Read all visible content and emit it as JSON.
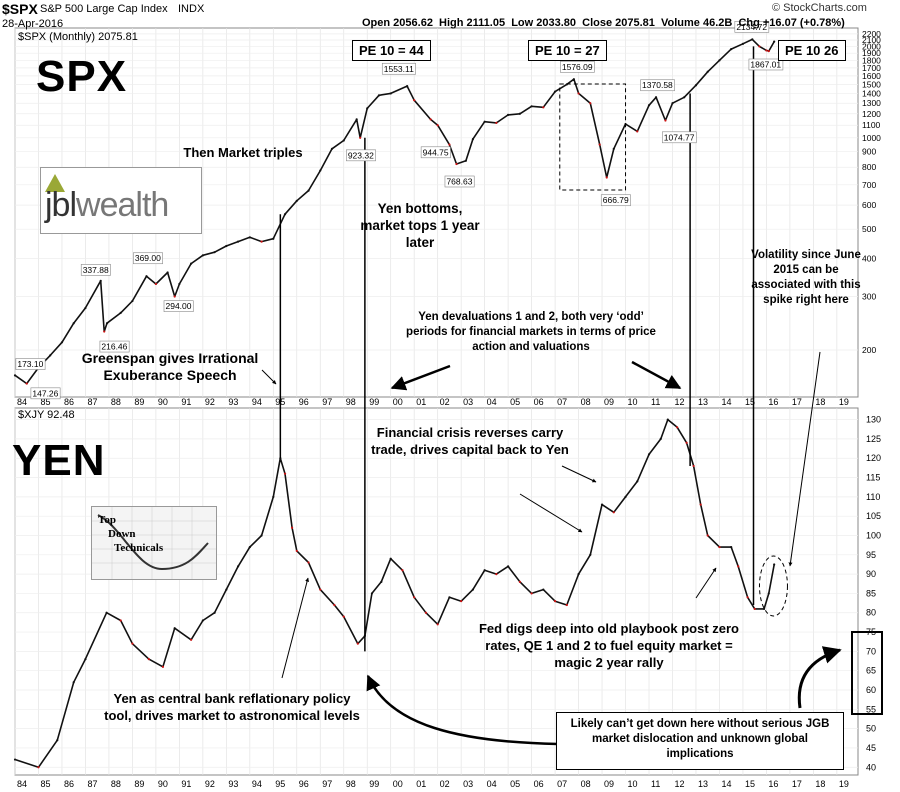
{
  "header": {
    "symbol": "$SPX",
    "description": "S&P 500 Large Cap Index",
    "exchange": "INDX",
    "date": "28-Apr-2016",
    "ohlc": "Open 2056.62  High 2111.05  Low 2033.80  Close 2075.81  Volume 46.2B  Chg +16.07 (+0.78%)",
    "credit": "© StockCharts.com"
  },
  "spx_panel": {
    "legend": "$SPX (Monthly) 2075.81",
    "big_label": "SPX",
    "pe_labels": [
      "PE 10 = 44",
      "PE 10 = 27",
      "PE 10 26"
    ],
    "callouts": [
      "173.10",
      "147.26",
      "337.88",
      "216.46",
      "369.00",
      "294.00",
      "923.32",
      "1553.11",
      "944.75",
      "768.63",
      "1576.09",
      "666.79",
      "1370.58",
      "1074.77",
      "2134.72",
      "1867.01"
    ],
    "y_ticks": [
      "2200",
      "2100",
      "2000",
      "1900",
      "1800",
      "1700",
      "1600",
      "1500",
      "1400",
      "1300",
      "1200",
      "1100",
      "1000",
      "900",
      "800",
      "700",
      "600",
      "500",
      "400",
      "300",
      "200"
    ]
  },
  "yen_panel": {
    "legend": "$XJY 92.48",
    "big_label": "YEN",
    "y_ticks": [
      "130",
      "125",
      "120",
      "115",
      "110",
      "105",
      "100",
      "95",
      "90",
      "85",
      "80",
      "75",
      "70",
      "65",
      "60",
      "55",
      "50",
      "45",
      "40"
    ]
  },
  "x_ticks": [
    "84",
    "85",
    "86",
    "87",
    "88",
    "89",
    "90",
    "91",
    "92",
    "93",
    "94",
    "95",
    "96",
    "97",
    "98",
    "99",
    "00",
    "01",
    "02",
    "03",
    "04",
    "05",
    "06",
    "07",
    "08",
    "09",
    "10",
    "11",
    "12",
    "13",
    "14",
    "15",
    "16",
    "17",
    "18",
    "19"
  ],
  "annotations": {
    "market_triples": "Then Market triples",
    "yen_bottoms": "Yen bottoms, market tops 1 year later",
    "volatility": "Volatility since June 2015 can be associated with this spike right here",
    "devaluations": "Yen devaluations 1 and 2, both very ‘odd’ periods for financial markets in terms of price action and valuations",
    "greenspan": "Greenspan gives Irrational Exuberance Speech",
    "financial_crisis": "Financial crisis reverses carry trade, drives capital back to Yen",
    "fed_digs": "Fed digs deep into old playbook post zero rates, QE 1 and 2 to fuel equity market = magic 2 year rally",
    "yen_tool": "Yen as central bank reflationary policy tool, drives market to astronomical levels",
    "likely": "Likely can’t get down here without serious JGB market dislocation and unknown global implications"
  },
  "logos": {
    "jbl_prefix": "jbl",
    "jbl_suffix": "wealth",
    "tdt_lines": [
      "Top",
      "Down",
      "Technicals"
    ]
  },
  "chart_data": [
    {
      "type": "line",
      "title": "$SPX (Monthly) 2075.81",
      "scale": "log",
      "ylim": [
        140,
        2300
      ],
      "xlim": [
        1984.0,
        2019.9
      ],
      "x": [
        1984.0,
        1984.5,
        1985.0,
        1985.5,
        1986.0,
        1986.5,
        1987.0,
        1987.65,
        1987.8,
        1987.92,
        1988.5,
        1989.0,
        1989.6,
        1990.0,
        1990.5,
        1990.8,
        1991.0,
        1991.5,
        1992.0,
        1992.5,
        1993.0,
        1993.5,
        1994.0,
        1994.5,
        1995.0,
        1995.5,
        1996.0,
        1996.5,
        1997.0,
        1997.5,
        1998.0,
        1998.55,
        1998.7,
        1999.0,
        1999.5,
        2000.0,
        2000.7,
        2001.0,
        2001.7,
        2002.0,
        2002.5,
        2002.8,
        2003.2,
        2003.5,
        2004.0,
        2004.5,
        2005.0,
        2005.5,
        2006.0,
        2006.5,
        2007.0,
        2007.5,
        2007.8,
        2008.0,
        2008.5,
        2008.9,
        2009.2,
        2009.5,
        2010.0,
        2010.5,
        2011.0,
        2011.3,
        2011.7,
        2012.0,
        2012.5,
        2013.0,
        2013.5,
        2014.0,
        2014.5,
        2015.0,
        2015.4,
        2015.7,
        2016.0,
        2016.1,
        2016.33
      ],
      "series": [
        {
          "values": [
            165,
            155,
            175,
            192,
            212,
            245,
            275,
            337.88,
            230,
            245,
            265,
            290,
            350,
            330,
            360,
            300,
            330,
            385,
            410,
            420,
            440,
            455,
            470,
            455,
            465,
            560,
            620,
            670,
            780,
            920,
            980,
            1150,
            1000,
            1250,
            1380,
            1400,
            1480,
            1330,
            1150,
            1100,
            950,
            820,
            840,
            990,
            1130,
            1120,
            1190,
            1200,
            1270,
            1260,
            1420,
            1500,
            1560,
            1400,
            1300,
            950,
            740,
            920,
            1110,
            1050,
            1280,
            1360,
            1140,
            1300,
            1360,
            1490,
            1650,
            1800,
            1960,
            2040,
            2110,
            2000,
            1940,
            1930,
            2075
          ]
        }
      ]
    },
    {
      "type": "line",
      "title": "$XJY 92.48",
      "ylim": [
        38,
        133
      ],
      "xlim": [
        1984.0,
        2019.9
      ],
      "x": [
        1984.0,
        1985.0,
        1985.8,
        1986.5,
        1987.0,
        1987.9,
        1988.5,
        1989.0,
        1989.7,
        1990.3,
        1990.8,
        1991.5,
        1992.0,
        1992.5,
        1993.0,
        1993.5,
        1994.0,
        1994.5,
        1995.0,
        1995.3,
        1995.5,
        1995.8,
        1996.0,
        1996.5,
        1997.0,
        1997.6,
        1998.0,
        1998.6,
        1998.9,
        1999.2,
        1999.6,
        2000.0,
        2000.5,
        2001.0,
        2001.5,
        2002.0,
        2002.5,
        2003.0,
        2003.5,
        2004.0,
        2004.5,
        2005.0,
        2005.5,
        2006.0,
        2006.5,
        2007.0,
        2007.5,
        2008.0,
        2008.5,
        2009.0,
        2009.5,
        2010.0,
        2010.5,
        2011.0,
        2011.5,
        2011.8,
        2012.2,
        2012.6,
        2012.9,
        2013.2,
        2013.5,
        2014.0,
        2014.5,
        2014.8,
        2015.2,
        2015.5,
        2015.9,
        2016.1,
        2016.33
      ],
      "series": [
        {
          "values": [
            42,
            40,
            47,
            62,
            68,
            80,
            78,
            72,
            68,
            66,
            76,
            73,
            78,
            80,
            86,
            92,
            97,
            100,
            110,
            120,
            116,
            102,
            96,
            93,
            86,
            82,
            79,
            72,
            74,
            85,
            88,
            94,
            91,
            84,
            80,
            77,
            84,
            83,
            86,
            91,
            90,
            92,
            88,
            85,
            86,
            83,
            82,
            90,
            95,
            108,
            106,
            110,
            114,
            121,
            125,
            130,
            128,
            124,
            118,
            108,
            100,
            97,
            97,
            92,
            84,
            81,
            81,
            85,
            92.48
          ]
        }
      ]
    }
  ]
}
